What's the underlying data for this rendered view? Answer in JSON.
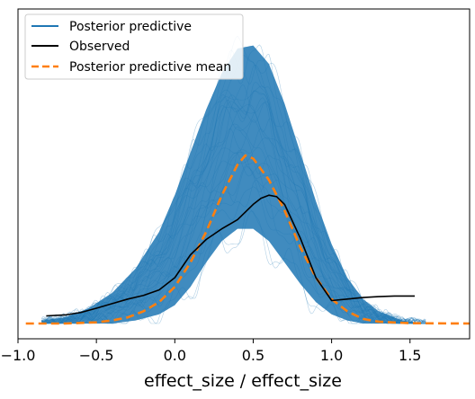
{
  "chart_data": {
    "type": "line",
    "title": "",
    "xlabel": "effect_size / effect_size",
    "ylabel": "",
    "xlim": [
      -1.0,
      1.88
    ],
    "ylim": [
      0,
      1.0
    ],
    "xticks": [
      -1.0,
      -0.5,
      0.0,
      0.5,
      1.0,
      1.5
    ],
    "xtick_labels": [
      "−1.0",
      "−0.5",
      "0.0",
      "0.5",
      "1.0",
      "1.5"
    ],
    "yticks_shown": false,
    "grid": false,
    "legend": {
      "position": "top-left",
      "entries": [
        "Posterior predictive",
        "Observed",
        "Posterior predictive mean"
      ]
    },
    "colors": {
      "posterior_predictive": "#1f77b4",
      "observed": "#000000",
      "posterior_predictive_mean": "#ff7f0e"
    },
    "series": [
      {
        "name": "Posterior predictive",
        "kind": "ensemble-band",
        "x": [
          -0.85,
          -0.7,
          -0.55,
          -0.4,
          -0.25,
          -0.1,
          0.0,
          0.1,
          0.2,
          0.3,
          0.4,
          0.5,
          0.6,
          0.7,
          0.8,
          0.9,
          1.0,
          1.1,
          1.2,
          1.3,
          1.45,
          1.6
        ],
        "lower": [
          0.0,
          0.0,
          0.0,
          0.0,
          0.01,
          0.03,
          0.06,
          0.12,
          0.2,
          0.27,
          0.31,
          0.31,
          0.27,
          0.2,
          0.13,
          0.07,
          0.03,
          0.01,
          0.0,
          0.0,
          0.0,
          0.0
        ],
        "upper": [
          0.01,
          0.02,
          0.05,
          0.1,
          0.18,
          0.3,
          0.42,
          0.56,
          0.7,
          0.82,
          0.9,
          0.91,
          0.85,
          0.72,
          0.56,
          0.4,
          0.26,
          0.15,
          0.08,
          0.04,
          0.01,
          0.0
        ]
      },
      {
        "name": "Observed",
        "x": [
          -0.82,
          -0.7,
          -0.6,
          -0.5,
          -0.4,
          -0.3,
          -0.2,
          -0.1,
          0.0,
          0.1,
          0.2,
          0.3,
          0.4,
          0.5,
          0.55,
          0.6,
          0.65,
          0.7,
          0.8,
          0.9,
          1.0,
          1.1,
          1.2,
          1.3,
          1.4,
          1.53
        ],
        "y": [
          0.025,
          0.028,
          0.036,
          0.05,
          0.065,
          0.08,
          0.092,
          0.11,
          0.15,
          0.225,
          0.275,
          0.31,
          0.34,
          0.39,
          0.41,
          0.42,
          0.415,
          0.39,
          0.28,
          0.15,
          0.075,
          0.08,
          0.085,
          0.088,
          0.09,
          0.09
        ]
      },
      {
        "name": "Posterior predictive mean",
        "x": [
          -0.95,
          -0.7,
          -0.5,
          -0.4,
          -0.3,
          -0.2,
          -0.1,
          0.0,
          0.1,
          0.2,
          0.3,
          0.4,
          0.45,
          0.5,
          0.6,
          0.7,
          0.8,
          0.9,
          1.0,
          1.1,
          1.2,
          1.3,
          1.5,
          1.88
        ],
        "y": [
          0.0,
          0.0,
          0.004,
          0.01,
          0.02,
          0.04,
          0.07,
          0.12,
          0.2,
          0.3,
          0.42,
          0.52,
          0.55,
          0.54,
          0.47,
          0.37,
          0.25,
          0.15,
          0.08,
          0.04,
          0.015,
          0.006,
          0.001,
          0.0
        ]
      }
    ]
  }
}
